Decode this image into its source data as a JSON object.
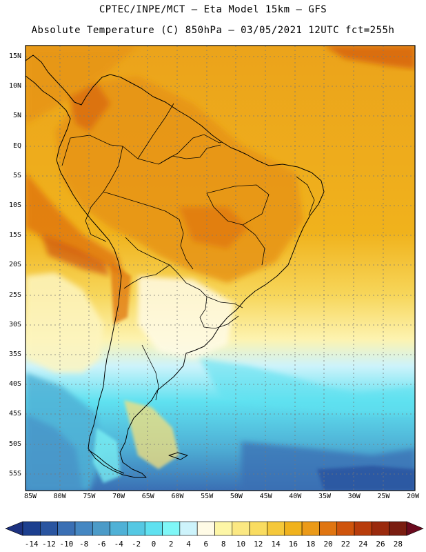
{
  "header": {
    "line1": "CPTEC/INPE/MCT –  Eta Model 15km – GFS",
    "line2": "Absolute Temperature (C) 850hPa – 03/05/2021 12UTC fct=255h"
  },
  "map": {
    "lat_ticks": [
      "15N",
      "10N",
      "5N",
      "EQ",
      "5S",
      "10S",
      "15S",
      "20S",
      "25S",
      "30S",
      "35S",
      "40S",
      "45S",
      "50S",
      "55S"
    ],
    "lon_ticks": [
      "85W",
      "80W",
      "75W",
      "70W",
      "65W",
      "60W",
      "55W",
      "50W",
      "45W",
      "40W",
      "35W",
      "30W",
      "25W",
      "20W"
    ]
  },
  "colorbar": {
    "labels": [
      "-14",
      "-12",
      "-10",
      "-8",
      "-6",
      "-4",
      "-2",
      "0",
      "2",
      "4",
      "6",
      "8",
      "10",
      "12",
      "14",
      "16",
      "18",
      "20",
      "22",
      "24",
      "26",
      "28"
    ],
    "colors": [
      "#1c3f8f",
      "#2a55a0",
      "#3a6fb4",
      "#4587c2",
      "#4c9bc8",
      "#4fb1d6",
      "#55c8e3",
      "#5fe1f0",
      "#7ff7f7",
      "#cdf3fb",
      "#fffbe6",
      "#fdf6a6",
      "#fbe882",
      "#f9dc60",
      "#f5c83a",
      "#f0b21c",
      "#eb9a18",
      "#e07510",
      "#cf540c",
      "#b83c0b",
      "#9a2a0d",
      "#7a1d10"
    ],
    "extend_low_color": "#1c3180",
    "extend_high_color": "#6b0a1e"
  }
}
